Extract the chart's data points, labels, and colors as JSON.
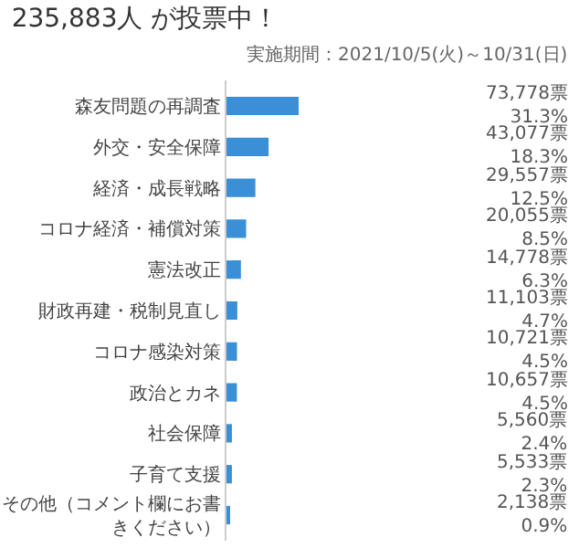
{
  "chart_data": {
    "type": "bar",
    "orientation": "horizontal",
    "title": "235,883人 が投票中！",
    "subtitle": "実施期間：2021/10/5(火)～10/31(日)",
    "categories": [
      "森友問題の再調査",
      "外交・安全保障",
      "経済・成長戦略",
      "コロナ経済・補償対策",
      "憲法改正",
      "財政再建・税制見直し",
      "コロナ感染対策",
      "政治とカネ",
      "社会保障",
      "子育て支援",
      "その他（コメント欄にお書きください）"
    ],
    "values": [
      73778,
      43077,
      29557,
      20055,
      14778,
      11103,
      10721,
      10657,
      5560,
      5533,
      2138
    ],
    "value_labels": [
      "73,778票\n31.3%",
      "43,077票\n18.3%",
      "29,557票\n12.5%",
      "20,055票\n8.5%",
      "14,778票\n6.3%",
      "11,103票\n4.7%",
      "10,721票\n4.5%",
      "10,657票\n4.5%",
      "5,560票\n2.4%",
      "5,533票\n2.3%",
      "2,138票\n0.9%"
    ],
    "color": "#3a8fd6",
    "legend": false
  }
}
